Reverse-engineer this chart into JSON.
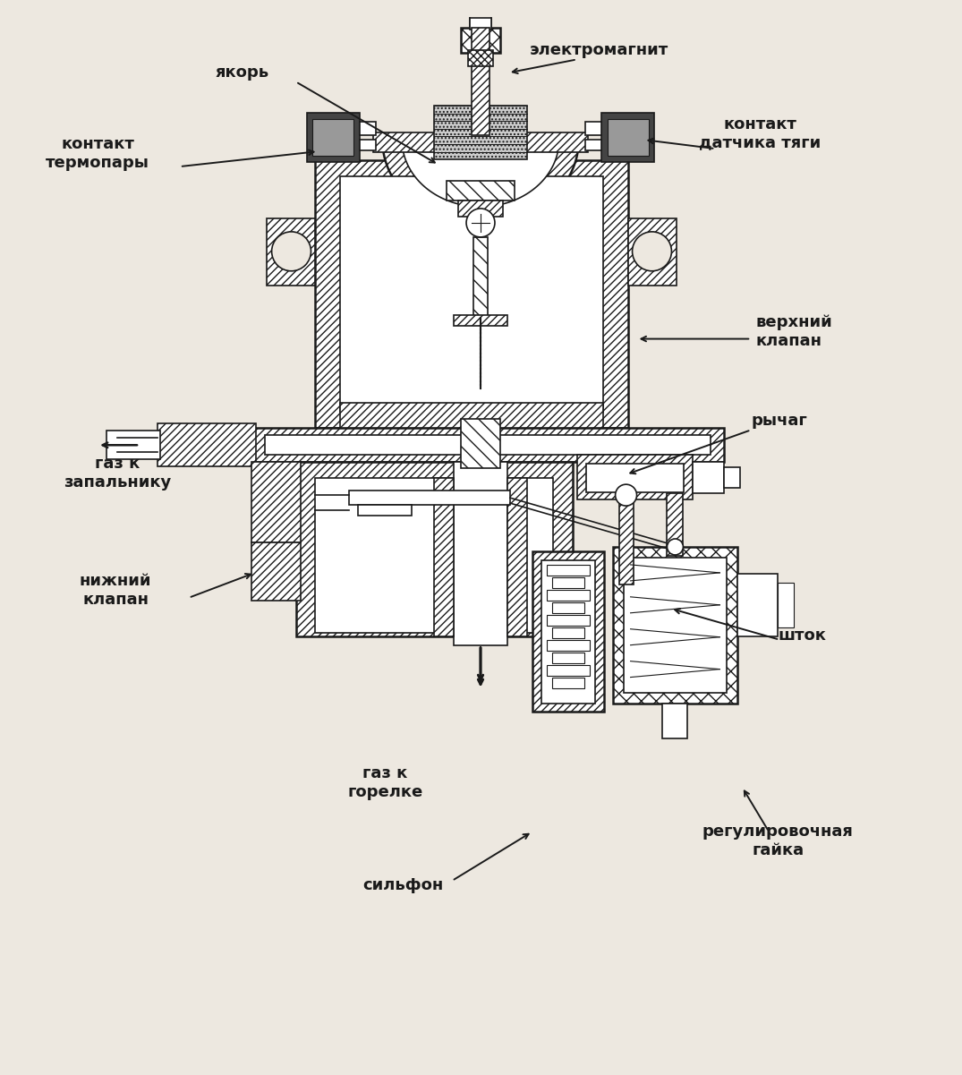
{
  "background_color": "#ede8e0",
  "line_color": "#1a1a1a",
  "figsize": [
    10.75,
    12.01
  ],
  "dpi": 100,
  "labels": {
    "yakor": "якорь",
    "elektromagnit": "электромагнит",
    "kontakt_termopary": "контакт\nтермопары",
    "kontakt_datchika": "контакт\nдатчика тяги",
    "verkhniy_klapan": "верхний\nклапан",
    "rychag": "рычаг",
    "gaz_zapalniku": "газ к\nзапальнику",
    "nizhniy_klapan": "нижний\nклапан",
    "gaz_gorelke": "газ к\nгорелке",
    "sifon": "сильфон",
    "shtok": "шток",
    "regulirovochnaya_gayka": "регулировочная\nгайка"
  }
}
